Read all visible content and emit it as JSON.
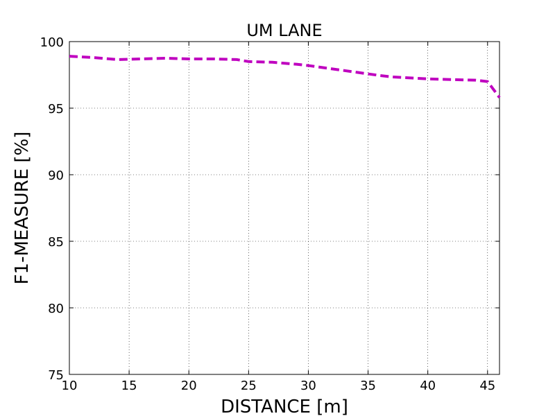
{
  "chart_data": {
    "type": "line",
    "title": "UM LANE",
    "x_label": "DISTANCE [m]",
    "y_label": "F1-MEASURE [%]",
    "x": [
      10,
      12,
      14,
      16,
      18,
      20,
      22,
      24,
      25,
      27,
      29,
      30,
      32,
      34,
      36,
      37,
      40,
      42,
      44,
      45,
      46
    ],
    "series": [
      {
        "name": "UM LANE",
        "color": "#bf00bf",
        "values": [
          98.9,
          98.8,
          98.65,
          98.7,
          98.75,
          98.7,
          98.7,
          98.65,
          98.5,
          98.45,
          98.3,
          98.2,
          97.95,
          97.7,
          97.45,
          97.35,
          97.2,
          97.15,
          97.1,
          97.0,
          95.8
        ]
      }
    ],
    "xlim": [
      10,
      46
    ],
    "xticks": [
      10,
      15,
      20,
      25,
      30,
      35,
      40,
      45
    ],
    "ylim": [
      75,
      100
    ],
    "yticks": [
      75,
      80,
      85,
      90,
      95,
      100
    ],
    "grid": true,
    "line_style": "dashed"
  }
}
